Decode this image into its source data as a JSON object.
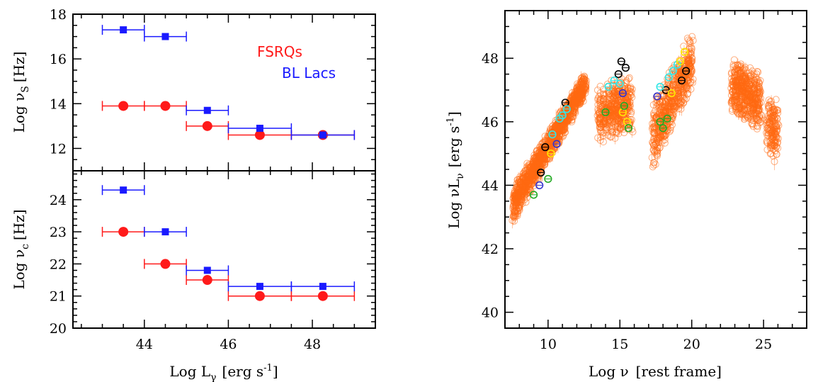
{
  "colors": {
    "fsrq": "#ff1a1a",
    "bllac": "#1a1aff",
    "sed_main": "#ff6a13",
    "sed_black": "#000000",
    "sed_cyan": "#33e6e6",
    "sed_yellow": "#ffe600",
    "sed_green": "#22aa22",
    "sed_blue": "#3333cc"
  },
  "chart_data": [
    {
      "id": "nu_s",
      "type": "scatter",
      "x_range": [
        42.3,
        49.5
      ],
      "ylim": [
        11,
        18
      ],
      "yticks": [
        "12",
        "14",
        "16",
        "18"
      ],
      "ylabel_main": "Log ν",
      "ylabel_sub": "S",
      "ylabel_unit": "[Hz]",
      "legend": {
        "fsrq": "FSRQs",
        "bllac": "BL Lacs"
      },
      "series": [
        {
          "name": "FSRQs",
          "color_key": "fsrq",
          "marker": "circle",
          "points": [
            {
              "x": 43.5,
              "y": 13.9,
              "xerr": [
                43.0,
                44.0
              ]
            },
            {
              "x": 44.5,
              "y": 13.9,
              "xerr": [
                44.0,
                45.0
              ]
            },
            {
              "x": 45.5,
              "y": 13.0,
              "xerr": [
                45.0,
                46.0
              ]
            },
            {
              "x": 46.75,
              "y": 12.6,
              "xerr": [
                46.0,
                47.5
              ]
            },
            {
              "x": 48.25,
              "y": 12.6,
              "xerr": [
                47.5,
                49.0
              ]
            }
          ]
        },
        {
          "name": "BL Lacs",
          "color_key": "bllac",
          "marker": "square",
          "points": [
            {
              "x": 43.5,
              "y": 17.3,
              "xerr": [
                43.0,
                44.0
              ]
            },
            {
              "x": 44.5,
              "y": 17.0,
              "xerr": [
                44.0,
                45.0
              ]
            },
            {
              "x": 45.5,
              "y": 13.7,
              "xerr": [
                45.0,
                46.0
              ]
            },
            {
              "x": 46.75,
              "y": 12.9,
              "xerr": [
                46.0,
                47.5
              ]
            },
            {
              "x": 48.25,
              "y": 12.6,
              "xerr": [
                47.5,
                49.0
              ]
            }
          ]
        }
      ]
    },
    {
      "id": "nu_c",
      "type": "scatter",
      "x_range": [
        42.3,
        49.5
      ],
      "ylim": [
        20,
        24.9
      ],
      "xticks": [
        "44",
        "46",
        "48"
      ],
      "yticks": [
        "20",
        "21",
        "22",
        "23",
        "24"
      ],
      "xlabel_main": "Log L",
      "xlabel_sub": "γ",
      "xlabel_unit": "[erg s",
      "xlabel_sup": "-1",
      "xlabel_close": "]",
      "ylabel_main": "Log ν",
      "ylabel_sub": "c",
      "ylabel_unit": "[Hz]",
      "series": [
        {
          "name": "FSRQs",
          "color_key": "fsrq",
          "marker": "circle",
          "points": [
            {
              "x": 43.5,
              "y": 23.0,
              "xerr": [
                43.0,
                44.0
              ]
            },
            {
              "x": 44.5,
              "y": 22.0,
              "xerr": [
                44.0,
                45.0
              ]
            },
            {
              "x": 45.5,
              "y": 21.5,
              "xerr": [
                45.0,
                46.0
              ]
            },
            {
              "x": 46.75,
              "y": 21.0,
              "xerr": [
                46.0,
                47.5
              ]
            },
            {
              "x": 48.25,
              "y": 21.0,
              "xerr": [
                47.5,
                49.0
              ]
            }
          ]
        },
        {
          "name": "BL Lacs",
          "color_key": "bllac",
          "marker": "square",
          "points": [
            {
              "x": 43.5,
              "y": 24.3,
              "xerr": [
                43.0,
                44.0
              ]
            },
            {
              "x": 44.5,
              "y": 23.0,
              "xerr": [
                44.0,
                45.0
              ]
            },
            {
              "x": 45.5,
              "y": 21.8,
              "xerr": [
                45.0,
                46.0
              ]
            },
            {
              "x": 46.75,
              "y": 21.3,
              "xerr": [
                46.0,
                47.5
              ]
            },
            {
              "x": 48.25,
              "y": 21.3,
              "xerr": [
                47.5,
                49.0
              ]
            }
          ]
        }
      ]
    },
    {
      "id": "sed",
      "type": "scatter",
      "x_range": [
        7.0,
        28.0
      ],
      "ylim": [
        39.5,
        49.5
      ],
      "xticks": [
        "10",
        "15",
        "20",
        "25"
      ],
      "yticks": [
        "40",
        "42",
        "44",
        "46",
        "48"
      ],
      "xlabel_main": "Log ν",
      "xlabel_unit": "[rest frame]",
      "ylabel_main": "Log νL",
      "ylabel_sub": "ν",
      "ylabel_unit": "[erg s",
      "ylabel_sup": "-1",
      "ylabel_close": "]",
      "clouds": [
        {
          "name": "radio-optical",
          "x": [
            7.6,
            12.6
          ],
          "y_start": [
            42.8,
            44.0
          ],
          "y_end": [
            46.8,
            47.6
          ],
          "count": 1400
        },
        {
          "name": "optical-UV",
          "x": [
            13.5,
            15.8
          ],
          "y_start": [
            45.2,
            47.2
          ],
          "y_end": [
            45.6,
            47.6
          ],
          "count": 450
        },
        {
          "name": "X-ray",
          "x": [
            17.3,
            20.0
          ],
          "y_start": [
            44.3,
            46.6
          ],
          "y_end": [
            47.0,
            48.9
          ],
          "count": 550
        },
        {
          "name": "gamma-GeV",
          "x": [
            22.8,
            24.8
          ],
          "y_start": [
            46.2,
            48.1
          ],
          "y_end": [
            45.6,
            47.6
          ],
          "count": 500
        },
        {
          "name": "gamma-TeV",
          "x": [
            25.3,
            26.0
          ],
          "y_start": [
            44.6,
            47.2
          ],
          "y_end": [
            44.8,
            46.6
          ],
          "count": 160
        }
      ],
      "highlight_points": [
        {
          "color_key": "sed_black",
          "x": 9.8,
          "y": 45.2
        },
        {
          "color_key": "sed_black",
          "x": 9.5,
          "y": 44.4
        },
        {
          "color_key": "sed_black",
          "x": 11.2,
          "y": 46.6
        },
        {
          "color_key": "sed_black",
          "x": 15.1,
          "y": 47.9
        },
        {
          "color_key": "sed_black",
          "x": 15.4,
          "y": 47.7
        },
        {
          "color_key": "sed_black",
          "x": 14.9,
          "y": 47.5
        },
        {
          "color_key": "sed_black",
          "x": 18.2,
          "y": 47.0
        },
        {
          "color_key": "sed_black",
          "x": 19.6,
          "y": 47.6
        },
        {
          "color_key": "sed_black",
          "x": 19.3,
          "y": 47.3
        },
        {
          "color_key": "sed_cyan",
          "x": 10.3,
          "y": 45.6
        },
        {
          "color_key": "sed_cyan",
          "x": 10.8,
          "y": 46.1
        },
        {
          "color_key": "sed_cyan",
          "x": 11.3,
          "y": 46.4
        },
        {
          "color_key": "sed_cyan",
          "x": 11.0,
          "y": 46.2
        },
        {
          "color_key": "sed_cyan",
          "x": 14.2,
          "y": 47.1
        },
        {
          "color_key": "sed_cyan",
          "x": 14.6,
          "y": 47.3
        },
        {
          "color_key": "sed_cyan",
          "x": 15.0,
          "y": 47.2
        },
        {
          "color_key": "sed_cyan",
          "x": 17.8,
          "y": 47.1
        },
        {
          "color_key": "sed_cyan",
          "x": 18.4,
          "y": 47.4
        },
        {
          "color_key": "sed_cyan",
          "x": 19.0,
          "y": 47.8
        },
        {
          "color_key": "sed_cyan",
          "x": 18.7,
          "y": 47.6
        },
        {
          "color_key": "sed_yellow",
          "x": 10.2,
          "y": 45.0
        },
        {
          "color_key": "sed_yellow",
          "x": 15.2,
          "y": 46.3
        },
        {
          "color_key": "sed_yellow",
          "x": 15.5,
          "y": 46.0
        },
        {
          "color_key": "sed_yellow",
          "x": 18.6,
          "y": 46.9
        },
        {
          "color_key": "sed_yellow",
          "x": 19.5,
          "y": 48.2
        },
        {
          "color_key": "sed_yellow",
          "x": 19.2,
          "y": 47.9
        },
        {
          "color_key": "sed_green",
          "x": 9.0,
          "y": 43.7
        },
        {
          "color_key": "sed_green",
          "x": 10.0,
          "y": 44.2
        },
        {
          "color_key": "sed_green",
          "x": 14.0,
          "y": 46.3
        },
        {
          "color_key": "sed_green",
          "x": 15.3,
          "y": 46.5
        },
        {
          "color_key": "sed_green",
          "x": 15.6,
          "y": 45.8
        },
        {
          "color_key": "sed_green",
          "x": 17.8,
          "y": 46.0
        },
        {
          "color_key": "sed_green",
          "x": 18.3,
          "y": 46.1
        },
        {
          "color_key": "sed_green",
          "x": 18.0,
          "y": 45.8
        },
        {
          "color_key": "sed_blue",
          "x": 9.4,
          "y": 44.0
        },
        {
          "color_key": "sed_blue",
          "x": 10.6,
          "y": 45.3
        },
        {
          "color_key": "sed_blue",
          "x": 15.2,
          "y": 46.9
        },
        {
          "color_key": "sed_blue",
          "x": 17.6,
          "y": 46.8
        }
      ]
    }
  ]
}
